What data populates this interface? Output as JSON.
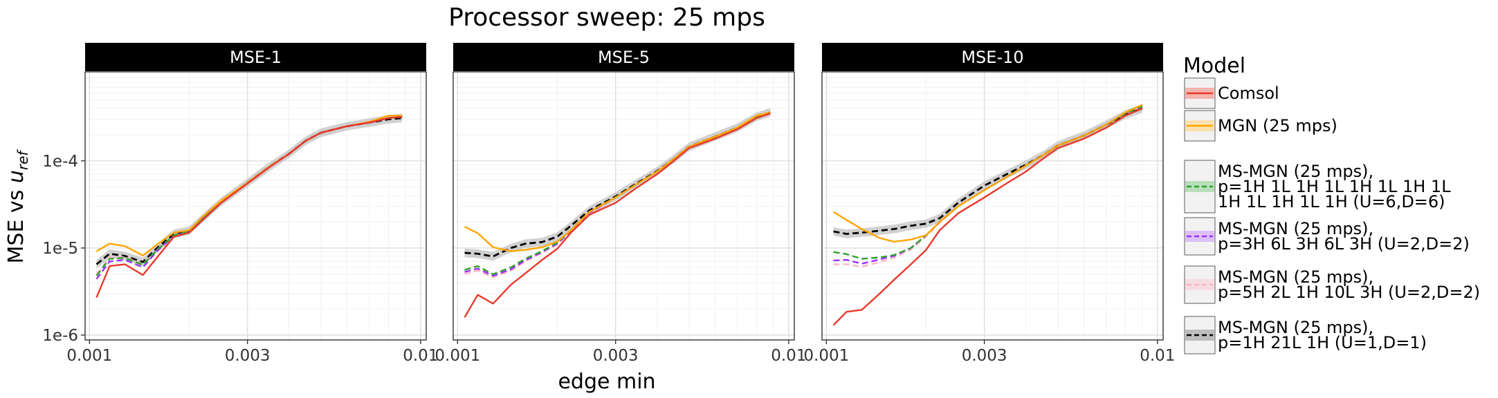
{
  "chart_data": {
    "type": "line",
    "title": "Processor sweep: 25 mps",
    "xlabel": "edge min",
    "ylabel_main": "MSE vs ",
    "ylabel_var": "u",
    "ylabel_sub": "ref",
    "x_scale": "log",
    "y_scale": "log",
    "xlim": [
      0.00097,
      0.0104
    ],
    "ylim": [
      8.8e-07,
      0.00105
    ],
    "x_ticks": [
      {
        "value": 0.001,
        "label": "0.001"
      },
      {
        "value": 0.003,
        "label": "0.003"
      },
      {
        "value": 0.01,
        "label": "0.01"
      }
    ],
    "y_ticks": [
      {
        "value": 1e-06,
        "label": "1e-6"
      },
      {
        "value": 1e-05,
        "label": "1e-5"
      },
      {
        "value": 0.0001,
        "label": "1e-4"
      }
    ],
    "grid": true,
    "legend": {
      "title": "Model",
      "position": "right",
      "entries": [
        {
          "key": "comsol",
          "lines": [
            "Comsol"
          ],
          "color": "#e8392b",
          "dash": "solid",
          "fill": "#f4b3ad"
        },
        {
          "key": "mgn",
          "lines": [
            "MGN (25 mps)"
          ],
          "color": "#ffa500",
          "dash": "solid",
          "fill": "#fde0b0"
        },
        {
          "key": "ms6",
          "lines": [
            "MS-MGN (25 mps),",
            "p=1H 1L 1H 1L 1H 1L 1H 1L",
            " 1H 1L 1H 1L 1H (U=6,D=6)"
          ],
          "color": "#2ca02c",
          "dash": "dashed",
          "fill": "#b8dfb8"
        },
        {
          "key": "ms2a",
          "lines": [
            "MS-MGN (25 mps),",
            "p=3H 6L 3H 6L 3H (U=2,D=2)"
          ],
          "color": "#9b30ff",
          "dash": "dashed",
          "fill": "#dcc0f7"
        },
        {
          "key": "ms2b",
          "lines": [
            "MS-MGN (25 mps),",
            "p=5H 2L 1H 10L 3H (U=2,D=2)"
          ],
          "color": "#ffb6c1",
          "dash": "dashed",
          "fill": "#f7dde1"
        },
        {
          "key": "ms1",
          "lines": [
            "MS-MGN (25 mps),",
            "p=1H 21L 1H (U=1,D=1)"
          ],
          "color": "#000000",
          "dash": "dashed",
          "fill": "#bdbdbd"
        }
      ]
    },
    "panels": [
      {
        "label": "MSE-1",
        "series": [
          {
            "key": "comsol",
            "x": [
              0.00105,
              0.00115,
              0.00128,
              0.00145,
              0.0016,
              0.0018,
              0.002,
              0.0022,
              0.0025,
              0.003,
              0.0035,
              0.004,
              0.0045,
              0.005,
              0.006,
              0.007,
              0.008,
              0.0088
            ],
            "y": [
              2.7e-06,
              6.2e-06,
              6.5e-06,
              4.9e-06,
              7.8e-06,
              1.35e-05,
              1.5e-05,
              2.1e-05,
              3.3e-05,
              5.5e-05,
              8.5e-05,
              0.00012,
              0.00017,
              0.00021,
              0.00025,
              0.000275,
              0.00031,
              0.00032
            ]
          },
          {
            "key": "mgn",
            "x": [
              0.00105,
              0.00115,
              0.00128,
              0.00145,
              0.0016,
              0.0018,
              0.002,
              0.0022,
              0.0025,
              0.003,
              0.0035,
              0.004,
              0.0045,
              0.005,
              0.006,
              0.007,
              0.008,
              0.0088
            ],
            "y": [
              9.2e-06,
              1.12e-05,
              1.05e-05,
              8.2e-06,
              1.1e-05,
              1.5e-05,
              1.6e-05,
              2.3e-05,
              3.5e-05,
              5.6e-05,
              8.6e-05,
              0.00012,
              0.00017,
              0.00021,
              0.00025,
              0.00028,
              0.00033,
              0.00033
            ]
          },
          {
            "key": "ms6",
            "x": [
              0.00105,
              0.00115,
              0.00128,
              0.00145,
              0.0016,
              0.0018,
              0.002,
              0.0022,
              0.0025,
              0.003,
              0.0035,
              0.004,
              0.0045,
              0.005,
              0.006,
              0.007,
              0.008,
              0.0088
            ],
            "y": [
              4.8e-06,
              7.5e-06,
              7.7e-06,
              6.4e-06,
              9.5e-06,
              1.4e-05,
              1.55e-05,
              2.2e-05,
              3.4e-05,
              5.6e-05,
              8.6e-05,
              0.00012,
              0.00017,
              0.00021,
              0.00025,
              0.000275,
              0.00031,
              0.00032
            ]
          },
          {
            "key": "ms2a",
            "x": [
              0.00105,
              0.00115,
              0.00128,
              0.00145,
              0.0016,
              0.0018,
              0.002,
              0.0022,
              0.0025,
              0.003,
              0.0035,
              0.004,
              0.0045,
              0.005,
              0.006,
              0.007,
              0.008,
              0.0088
            ],
            "y": [
              4.4e-06,
              7e-06,
              7.3e-06,
              6e-06,
              9.2e-06,
              1.38e-05,
              1.53e-05,
              2.2e-05,
              3.4e-05,
              5.6e-05,
              8.6e-05,
              0.00012,
              0.00017,
              0.00021,
              0.00025,
              0.000275,
              0.00031,
              0.00032
            ]
          },
          {
            "key": "ms2b",
            "x": [
              0.00105,
              0.00115,
              0.00128,
              0.00145,
              0.0016,
              0.0018,
              0.002,
              0.0022,
              0.0025,
              0.003,
              0.0035,
              0.004,
              0.0045,
              0.005,
              0.006,
              0.007,
              0.008,
              0.0088
            ],
            "y": [
              5e-06,
              7.8e-06,
              7.9e-06,
              6.5e-06,
              9.6e-06,
              1.4e-05,
              1.55e-05,
              2.2e-05,
              3.4e-05,
              5.6e-05,
              8.6e-05,
              0.00012,
              0.00017,
              0.00021,
              0.00025,
              0.000275,
              0.00031,
              0.00032
            ]
          },
          {
            "key": "ms1",
            "x": [
              0.00105,
              0.00115,
              0.00128,
              0.00145,
              0.0016,
              0.0018,
              0.002,
              0.0022,
              0.0025,
              0.003,
              0.0035,
              0.004,
              0.0045,
              0.005,
              0.006,
              0.007,
              0.008,
              0.0088
            ],
            "y": [
              6.5e-06,
              8.6e-06,
              8.1e-06,
              6.9e-06,
              1e-05,
              1.45e-05,
              1.58e-05,
              2.2e-05,
              3.4e-05,
              5.6e-05,
              8.6e-05,
              0.00012,
              0.00017,
              0.00021,
              0.00025,
              0.000275,
              0.0003,
              0.00031
            ]
          }
        ]
      },
      {
        "label": "MSE-5",
        "series": [
          {
            "key": "comsol",
            "x": [
              0.00105,
              0.00115,
              0.00128,
              0.00145,
              0.0016,
              0.0018,
              0.002,
              0.0022,
              0.0025,
              0.003,
              0.0035,
              0.004,
              0.0045,
              0.005,
              0.006,
              0.007,
              0.008,
              0.0088
            ],
            "y": [
              1.6e-06,
              2.9e-06,
              2.3e-06,
              3.8e-06,
              5.1e-06,
              7.3e-06,
              9.8e-06,
              1.5e-05,
              2.4e-05,
              3.3e-05,
              5e-05,
              7e-05,
              0.0001,
              0.00014,
              0.00018,
              0.00023,
              0.00031,
              0.00035
            ]
          },
          {
            "key": "mgn",
            "x": [
              0.00105,
              0.00115,
              0.00128,
              0.00145,
              0.0016,
              0.0018,
              0.002,
              0.0022,
              0.0025,
              0.003,
              0.0035,
              0.004,
              0.0045,
              0.005,
              0.006,
              0.007,
              0.008,
              0.0088
            ],
            "y": [
              1.75e-05,
              1.48e-05,
              1.02e-05,
              9.2e-06,
              9.5e-06,
              1.02e-05,
              1.18e-05,
              1.6e-05,
              2.6e-05,
              3.8e-05,
              5.5e-05,
              7.5e-05,
              0.000105,
              0.000145,
              0.00019,
              0.00024,
              0.00033,
              0.00036
            ]
          },
          {
            "key": "ms6",
            "x": [
              0.00105,
              0.00115,
              0.00128,
              0.00145,
              0.0016,
              0.0018,
              0.002,
              0.0022,
              0.0025,
              0.003,
              0.0035,
              0.004,
              0.0045,
              0.005,
              0.006,
              0.007,
              0.008,
              0.0088
            ],
            "y": [
              5.6e-06,
              6.2e-06,
              5e-06,
              6e-06,
              7.5e-06,
              9.2e-06,
              1.15e-05,
              1.6e-05,
              2.6e-05,
              3.8e-05,
              5.5e-05,
              7.5e-05,
              0.000105,
              0.000145,
              0.00019,
              0.00024,
              0.00032,
              0.00035
            ]
          },
          {
            "key": "ms2a",
            "x": [
              0.00105,
              0.00115,
              0.00128,
              0.00145,
              0.0016,
              0.0018,
              0.002,
              0.0022,
              0.0025,
              0.003,
              0.0035,
              0.004,
              0.0045,
              0.005,
              0.006,
              0.007,
              0.008,
              0.0088
            ],
            "y": [
              5.3e-06,
              5.8e-06,
              4.8e-06,
              5.7e-06,
              7.2e-06,
              9e-06,
              1.12e-05,
              1.58e-05,
              2.55e-05,
              3.8e-05,
              5.5e-05,
              7.5e-05,
              0.000105,
              0.000145,
              0.00019,
              0.00024,
              0.00032,
              0.00035
            ]
          },
          {
            "key": "ms2b",
            "x": [
              0.00105,
              0.00115,
              0.00128,
              0.00145,
              0.0016,
              0.0018,
              0.002,
              0.0022,
              0.0025,
              0.003,
              0.0035,
              0.004,
              0.0045,
              0.005,
              0.006,
              0.007,
              0.008,
              0.0088
            ],
            "y": [
              5e-06,
              5.5e-06,
              4.6e-06,
              5.5e-06,
              7e-06,
              8.8e-06,
              1.1e-05,
              1.55e-05,
              2.5e-05,
              3.8e-05,
              5.5e-05,
              7.5e-05,
              0.000105,
              0.000145,
              0.00019,
              0.00024,
              0.00032,
              0.00035
            ]
          },
          {
            "key": "ms1",
            "x": [
              0.00105,
              0.00115,
              0.00128,
              0.00145,
              0.0016,
              0.0018,
              0.002,
              0.0022,
              0.0025,
              0.003,
              0.0035,
              0.004,
              0.0045,
              0.005,
              0.006,
              0.007,
              0.008,
              0.0088
            ],
            "y": [
              8.8e-06,
              8.6e-06,
              8e-06,
              1e-05,
              1.12e-05,
              1.17e-05,
              1.35e-05,
              1.8e-05,
              2.7e-05,
              3.9e-05,
              5.6e-05,
              7.6e-05,
              0.000105,
              0.000145,
              0.00019,
              0.00024,
              0.00032,
              0.00036
            ]
          }
        ]
      },
      {
        "label": "MSE-10",
        "series": [
          {
            "key": "comsol",
            "x": [
              0.00105,
              0.00115,
              0.00128,
              0.00145,
              0.0016,
              0.0018,
              0.002,
              0.0022,
              0.0025,
              0.003,
              0.0035,
              0.004,
              0.0045,
              0.005,
              0.006,
              0.007,
              0.008,
              0.009
            ],
            "y": [
              1.3e-06,
              1.85e-06,
              1.95e-06,
              3e-06,
              4.3e-06,
              6.5e-06,
              9.5e-06,
              1.6e-05,
              2.5e-05,
              3.8e-05,
              5.5e-05,
              7.5e-05,
              0.000105,
              0.00014,
              0.00018,
              0.00024,
              0.00033,
              0.0004
            ]
          },
          {
            "key": "mgn",
            "x": [
              0.00105,
              0.00115,
              0.00128,
              0.00145,
              0.0016,
              0.0018,
              0.002,
              0.0022,
              0.0025,
              0.003,
              0.0035,
              0.004,
              0.0045,
              0.005,
              0.006,
              0.007,
              0.008,
              0.009
            ],
            "y": [
              2.6e-05,
              2.1e-05,
              1.65e-05,
              1.3e-05,
              1.18e-05,
              1.25e-05,
              1.4e-05,
              2e-05,
              3e-05,
              4.6e-05,
              6.5e-05,
              8.8e-05,
              0.000115,
              0.00015,
              0.000195,
              0.00026,
              0.00036,
              0.00044
            ]
          },
          {
            "key": "ms6",
            "x": [
              0.00105,
              0.00115,
              0.00128,
              0.00145,
              0.0016,
              0.0018,
              0.002,
              0.0022,
              0.0025,
              0.003,
              0.0035,
              0.004,
              0.0045,
              0.005,
              0.006,
              0.007,
              0.008,
              0.009
            ],
            "y": [
              9e-06,
              8.5e-06,
              7.5e-06,
              7.8e-06,
              8.3e-06,
              1e-05,
              1.4e-05,
              2e-05,
              3e-05,
              4.6e-05,
              6.5e-05,
              8.8e-05,
              0.000115,
              0.00015,
              0.000195,
              0.00026,
              0.00035,
              0.00042
            ]
          },
          {
            "key": "ms2a",
            "x": [
              0.00105,
              0.00115,
              0.00128,
              0.00145,
              0.0016,
              0.0018,
              0.002,
              0.0022,
              0.0025,
              0.003,
              0.0035,
              0.004,
              0.0045,
              0.005,
              0.006,
              0.007,
              0.008,
              0.009
            ],
            "y": [
              7.2e-06,
              7.3e-06,
              6.6e-06,
              7.4e-06,
              8.1e-06,
              1e-05,
              1.4e-05,
              2e-05,
              3e-05,
              4.6e-05,
              6.5e-05,
              8.8e-05,
              0.000115,
              0.00015,
              0.000195,
              0.00026,
              0.00035,
              0.00042
            ]
          },
          {
            "key": "ms2b",
            "x": [
              0.00105,
              0.00115,
              0.00128,
              0.00145,
              0.0016,
              0.0018,
              0.002,
              0.0022,
              0.0025,
              0.003,
              0.0035,
              0.004,
              0.0045,
              0.005,
              0.006,
              0.007,
              0.008,
              0.009
            ],
            "y": [
              6.5e-06,
              6.5e-06,
              6.1e-06,
              6.9e-06,
              7.7e-06,
              9.6e-06,
              1.35e-05,
              1.95e-05,
              3e-05,
              4.6e-05,
              6.5e-05,
              8.8e-05,
              0.000115,
              0.00015,
              0.000195,
              0.00026,
              0.00035,
              0.00042
            ]
          },
          {
            "key": "ms1",
            "x": [
              0.00105,
              0.00115,
              0.00128,
              0.00145,
              0.0016,
              0.0018,
              0.002,
              0.0022,
              0.0025,
              0.003,
              0.0035,
              0.004,
              0.0045,
              0.005,
              0.006,
              0.007,
              0.008,
              0.009
            ],
            "y": [
              1.55e-05,
              1.45e-05,
              1.5e-05,
              1.58e-05,
              1.65e-05,
              1.8e-05,
              1.9e-05,
              2.2e-05,
              3.3e-05,
              5.2e-05,
              7e-05,
              9e-05,
              0.000115,
              0.00015,
              0.000195,
              0.00026,
              0.00034,
              0.0004
            ]
          }
        ]
      }
    ]
  }
}
